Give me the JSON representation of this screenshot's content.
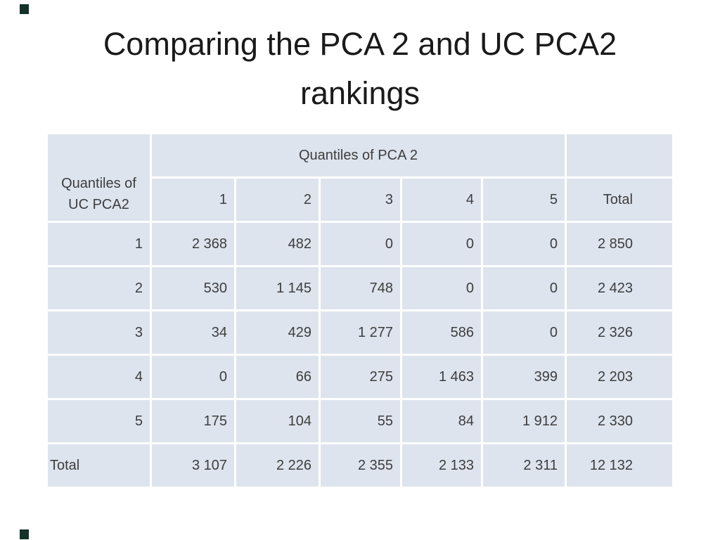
{
  "slide": {
    "title_lines": [
      "Comparing the PCA 2 and UC PCA2",
      "rankings"
    ]
  },
  "table": {
    "corner_label_line1": "Quantiles of",
    "corner_label_line2": "UC PCA2",
    "group_header": "Quantiles of PCA 2",
    "column_headers": [
      "1",
      "2",
      "3",
      "4",
      "5",
      "Total"
    ],
    "rows": [
      {
        "label": "1",
        "values": [
          "2 368",
          "482",
          "0",
          "0",
          "0",
          "2 850"
        ]
      },
      {
        "label": "2",
        "values": [
          "530",
          "1 145",
          "748",
          "0",
          "0",
          "2 423"
        ]
      },
      {
        "label": "3",
        "values": [
          "34",
          "429",
          "1 277",
          "586",
          "0",
          "2 326"
        ]
      },
      {
        "label": "4",
        "values": [
          "0",
          "66",
          "275",
          "1 463",
          "399",
          "2 203"
        ]
      },
      {
        "label": "5",
        "values": [
          "175",
          "104",
          "55",
          "84",
          "1 912",
          "2 330"
        ]
      },
      {
        "label": "Total",
        "values": [
          "3 107",
          "2 226",
          "2 355",
          "2 133",
          "2 311",
          "12 132"
        ]
      }
    ]
  },
  "colors": {
    "cell_background": "#dee4ee",
    "decoration": "#16302a",
    "table_text": "#3d3d3d"
  }
}
